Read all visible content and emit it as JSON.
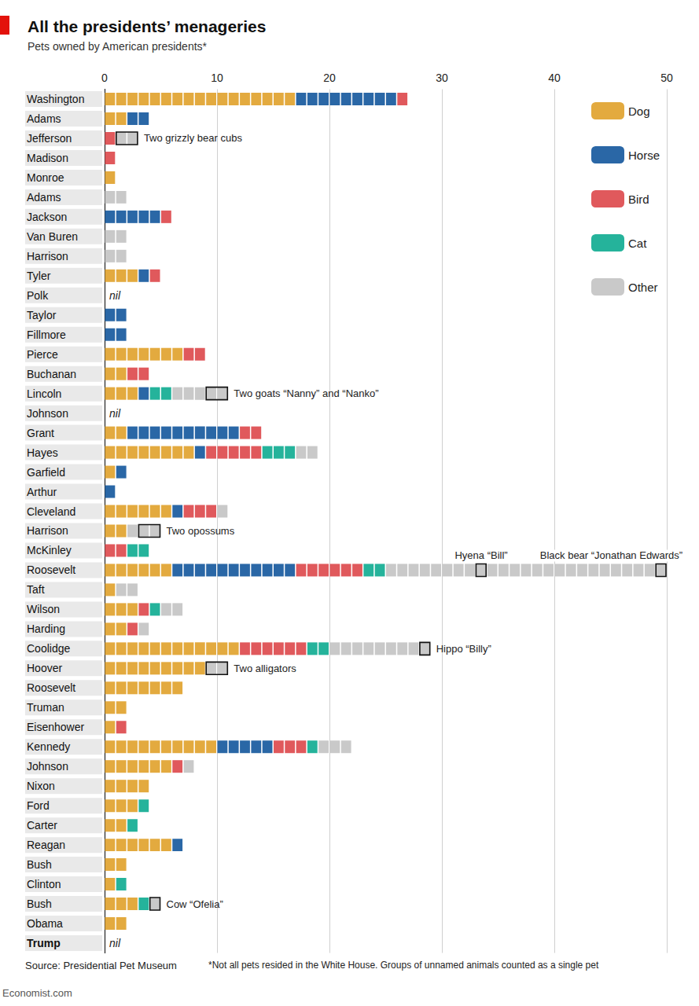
{
  "chart_data": {
    "type": "bar",
    "orientation": "horizontal",
    "stacked": true,
    "title": "All the presidents’ menageries",
    "subtitle": "Pets owned by American presidents*",
    "categories": [
      "Washington",
      "Adams",
      "Jefferson",
      "Madison",
      "Monroe",
      "Adams",
      "Jackson",
      "Van Buren",
      "Harrison",
      "Tyler",
      "Polk",
      "Taylor",
      "Fillmore",
      "Pierce",
      "Buchanan",
      "Lincoln",
      "Johnson",
      "Grant",
      "Hayes",
      "Garfield",
      "Arthur",
      "Cleveland",
      "Harrison",
      "McKinley",
      "Roosevelt",
      "Taft",
      "Wilson",
      "Harding",
      "Coolidge",
      "Hoover",
      "Roosevelt",
      "Truman",
      "Eisenhower",
      "Kennedy",
      "Johnson",
      "Nixon",
      "Ford",
      "Carter",
      "Reagan",
      "Bush",
      "Clinton",
      "Bush",
      "Obama",
      "Trump"
    ],
    "series": [
      {
        "name": "Dog",
        "color": "#e3aa3f",
        "values": [
          17,
          2,
          0,
          0,
          1,
          0,
          0,
          0,
          0,
          3,
          0,
          0,
          0,
          7,
          2,
          3,
          0,
          2,
          8,
          1,
          0,
          6,
          2,
          0,
          6,
          1,
          3,
          2,
          12,
          9,
          7,
          2,
          1,
          10,
          6,
          4,
          3,
          2,
          6,
          2,
          1,
          3,
          2,
          0
        ]
      },
      {
        "name": "Horse",
        "color": "#2a67a6",
        "values": [
          9,
          2,
          0,
          0,
          0,
          0,
          5,
          0,
          0,
          1,
          0,
          2,
          2,
          0,
          0,
          1,
          0,
          10,
          1,
          1,
          1,
          1,
          0,
          0,
          11,
          0,
          0,
          0,
          0,
          0,
          0,
          0,
          0,
          5,
          0,
          0,
          0,
          0,
          1,
          0,
          0,
          0,
          0,
          0
        ]
      },
      {
        "name": "Bird",
        "color": "#e0595c",
        "values": [
          1,
          0,
          1,
          1,
          0,
          0,
          1,
          0,
          0,
          1,
          0,
          0,
          0,
          2,
          2,
          0,
          0,
          2,
          5,
          0,
          0,
          3,
          0,
          2,
          6,
          0,
          1,
          1,
          6,
          0,
          0,
          0,
          1,
          3,
          1,
          0,
          0,
          0,
          0,
          0,
          0,
          0,
          0,
          0
        ]
      },
      {
        "name": "Cat",
        "color": "#25b39b",
        "values": [
          0,
          0,
          0,
          0,
          0,
          0,
          0,
          0,
          0,
          0,
          0,
          0,
          0,
          0,
          0,
          2,
          0,
          0,
          3,
          0,
          0,
          0,
          0,
          2,
          2,
          0,
          1,
          0,
          2,
          0,
          0,
          0,
          0,
          1,
          0,
          0,
          1,
          1,
          0,
          0,
          1,
          1,
          0,
          0
        ]
      },
      {
        "name": "Other",
        "color": "#c9c9c9",
        "values": [
          0,
          0,
          2,
          0,
          0,
          2,
          0,
          2,
          2,
          0,
          0,
          0,
          0,
          0,
          0,
          5,
          0,
          0,
          2,
          0,
          0,
          1,
          3,
          0,
          25,
          2,
          2,
          1,
          9,
          2,
          0,
          0,
          0,
          3,
          1,
          0,
          0,
          0,
          0,
          0,
          0,
          1,
          0,
          0
        ]
      }
    ],
    "xlim": [
      0,
      50
    ],
    "xticks": [
      0,
      10,
      20,
      30,
      40,
      50
    ],
    "grid": true,
    "legend": "top-right",
    "nil_text": "nil",
    "annotations": [
      {
        "row": 2,
        "from": 1,
        "to": 3,
        "text": "Two grizzly bear cubs"
      },
      {
        "row": 15,
        "from": 9,
        "to": 11,
        "text": "Two goats “Nanny” and “Nanko”"
      },
      {
        "row": 22,
        "from": 3,
        "to": 5,
        "text": "Two opossums"
      },
      {
        "row": 24,
        "from": 33,
        "to": 34,
        "text": "Hyena “Bill”"
      },
      {
        "row": 24,
        "from": 49,
        "to": 50,
        "text": "Black bear “Jonathan Edwards”"
      },
      {
        "row": 28,
        "from": 28,
        "to": 29,
        "text": "Hippo “Billy”"
      },
      {
        "row": 29,
        "from": 9,
        "to": 11,
        "text": "Two alligators"
      },
      {
        "row": 41,
        "from": 4,
        "to": 5,
        "text": "Cow “Ofelia”"
      }
    ],
    "source": "Source: Presidential Pet Museum",
    "footnote": "*Not all pets resided in the White House. Groups of unnamed animals counted as a single pet",
    "credit": "Economist.com"
  }
}
